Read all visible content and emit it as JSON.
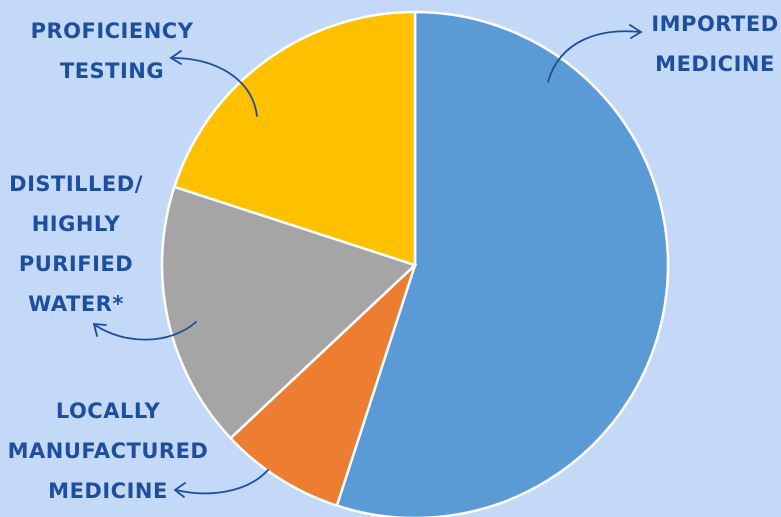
{
  "chart_data": {
    "type": "pie",
    "categories": [
      "IMPORTED MEDICINE",
      "LOCALLY MANUFACTURED MEDICINE",
      "DISTILLED/ HIGHLY PURIFIED WATER*",
      "PROFICIENCY TESTING"
    ],
    "values": [
      55,
      8,
      17,
      20
    ],
    "colors": [
      "#5b9bd5",
      "#ed7d31",
      "#a5a5a5",
      "#ffc000"
    ]
  }
}
